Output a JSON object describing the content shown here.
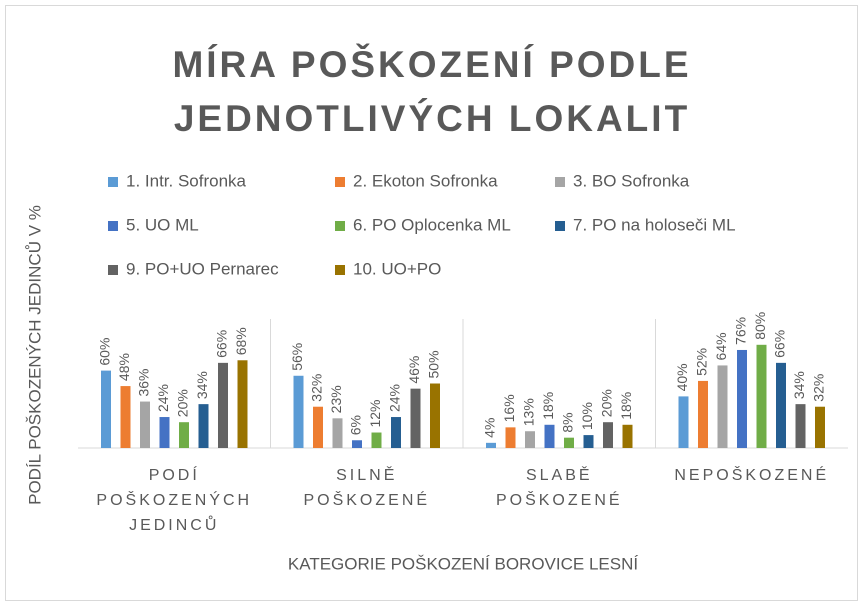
{
  "chart_data": {
    "type": "bar",
    "title": "MÍRA POŠKOZENÍ PODLE JEDNOTLIVÝCH LOKALIT",
    "x_label": "KATEGORIE POŠKOZENÍ BOROVICE LESNÍ",
    "y_label": "PODÍL POŠKOZENÝCH JEDINCŮ V %",
    "categories": [
      "PODÍ POŠKOZENÝCH JEDINCŮ",
      "SILNĚ POŠKOZENÉ",
      "SLABĚ POŠKOZENÉ",
      "NEPOŠKOZENÉ"
    ],
    "ylim": [
      0,
      100
    ],
    "series": [
      {
        "name": "1. Intr. Sofronka",
        "color": "#5b9bd5",
        "values": [
          60,
          56,
          4,
          40
        ],
        "value_labels": [
          "60%",
          "56%",
          "4%",
          "40%"
        ]
      },
      {
        "name": "2. Ekoton Sofronka",
        "color": "#ed7d31",
        "values": [
          48,
          32,
          16,
          52
        ],
        "value_labels": [
          "48%",
          "32%",
          "16%",
          "52%"
        ]
      },
      {
        "name": "3. BO Sofronka",
        "color": "#a5a5a5",
        "values": [
          36,
          23,
          13,
          64
        ],
        "value_labels": [
          "36%",
          "23%",
          "13%",
          "64%"
        ]
      },
      {
        "name": "5. UO ML",
        "color": "#4472c4",
        "values": [
          24,
          6,
          18,
          76
        ],
        "value_labels": [
          "24%",
          "6%",
          "18%",
          "76%"
        ]
      },
      {
        "name": "6. PO Oplocenka ML",
        "color": "#70ad47",
        "values": [
          20,
          12,
          8,
          80
        ],
        "value_labels": [
          "20%",
          "12%",
          "8%",
          "80%"
        ]
      },
      {
        "name": "7. PO na holoseči ML",
        "color": "#255e91",
        "values": [
          34,
          24,
          10,
          66
        ],
        "value_labels": [
          "34%",
          "24%",
          "10%",
          "66%"
        ]
      },
      {
        "name": "9. PO+UO Pernarec",
        "color": "#636363",
        "values": [
          66,
          46,
          20,
          34
        ],
        "value_labels": [
          "66%",
          "46%",
          "20%",
          "34%"
        ]
      },
      {
        "name": "10. UO+PO",
        "color": "#997300",
        "values": [
          68,
          50,
          18,
          32
        ],
        "value_labels": [
          "68%",
          "50%",
          "18%",
          "32%"
        ]
      }
    ]
  }
}
